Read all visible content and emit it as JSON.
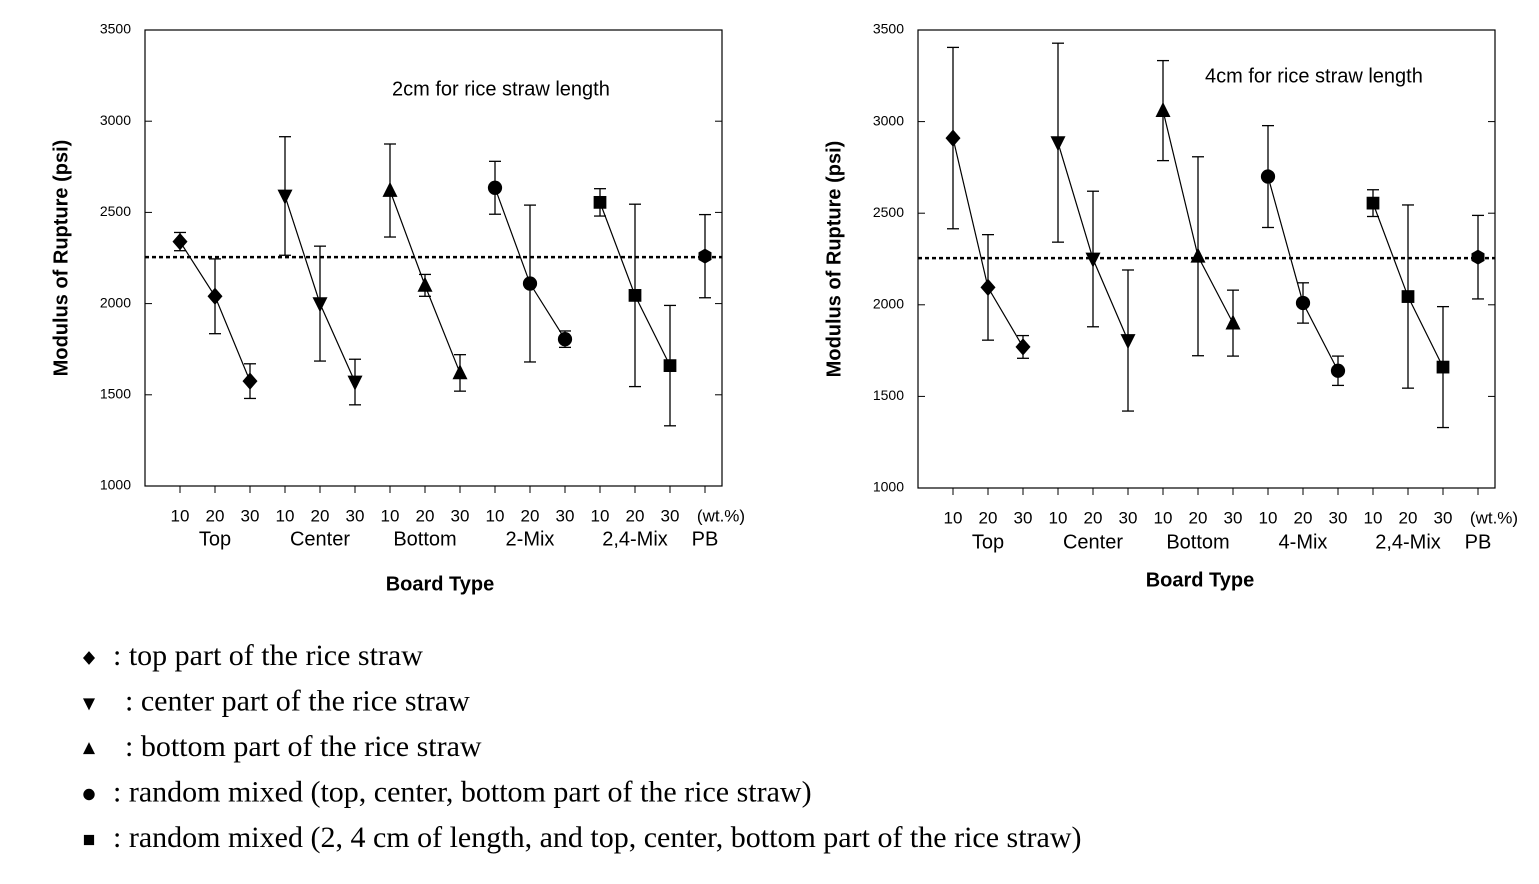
{
  "chart_data": [
    {
      "type": "scatter",
      "annotation": "2cm for rice straw length",
      "xlabel": "Board Type",
      "ylabel": "Modulus of Rupture (psi)",
      "ylim": [
        1000,
        3500
      ],
      "yticks": [
        1000,
        1500,
        2000,
        2500,
        3000,
        3500
      ],
      "color": "#000000",
      "reference_line": 2255,
      "categories": [
        "10",
        "20",
        "30",
        "10",
        "20",
        "30",
        "10",
        "20",
        "30",
        "10",
        "20",
        "30",
        "10",
        "20",
        "30",
        "(wt.%)"
      ],
      "groups": [
        "Top",
        "Center",
        "Bottom",
        "2-Mix",
        "2,4-Mix",
        "PB"
      ],
      "series": [
        {
          "marker": "diamond",
          "values": [
            2340,
            2040,
            1575,
            null,
            null,
            null,
            null,
            null,
            null,
            null,
            null,
            null,
            null,
            null,
            null,
            null
          ],
          "errors": [
            50,
            205,
            95,
            null,
            null,
            null,
            null,
            null,
            null,
            null,
            null,
            null,
            null,
            null,
            null,
            null
          ]
        },
        {
          "marker": "triangle-down",
          "values": [
            null,
            null,
            null,
            2590,
            2000,
            1570,
            null,
            null,
            null,
            null,
            null,
            null,
            null,
            null,
            null,
            null
          ],
          "errors": [
            null,
            null,
            null,
            325,
            315,
            125,
            null,
            null,
            null,
            null,
            null,
            null,
            null,
            null,
            null,
            null
          ]
        },
        {
          "marker": "triangle-up",
          "values": [
            null,
            null,
            null,
            null,
            null,
            null,
            2620,
            2100,
            1620,
            null,
            null,
            null,
            null,
            null,
            null,
            null
          ],
          "errors": [
            null,
            null,
            null,
            null,
            null,
            null,
            255,
            60,
            100,
            null,
            null,
            null,
            null,
            null,
            null,
            null
          ]
        },
        {
          "marker": "circle",
          "values": [
            null,
            null,
            null,
            null,
            null,
            null,
            null,
            null,
            null,
            2635,
            2110,
            1805,
            null,
            null,
            null,
            null
          ],
          "errors": [
            null,
            null,
            null,
            null,
            null,
            null,
            null,
            null,
            null,
            145,
            430,
            45,
            null,
            null,
            null,
            null
          ]
        },
        {
          "marker": "square",
          "values": [
            null,
            null,
            null,
            null,
            null,
            null,
            null,
            null,
            null,
            null,
            null,
            null,
            2555,
            2045,
            1660,
            null
          ],
          "errors": [
            null,
            null,
            null,
            null,
            null,
            null,
            null,
            null,
            null,
            null,
            null,
            null,
            75,
            500,
            330,
            null
          ]
        },
        {
          "marker": "hexagon",
          "values": [
            null,
            null,
            null,
            null,
            null,
            null,
            null,
            null,
            null,
            null,
            null,
            null,
            null,
            null,
            null,
            2260
          ],
          "errors": [
            null,
            null,
            null,
            null,
            null,
            null,
            null,
            null,
            null,
            null,
            null,
            null,
            null,
            null,
            null,
            228
          ]
        }
      ]
    },
    {
      "type": "scatter",
      "annotation": "4cm for rice straw length",
      "xlabel": "Board Type",
      "ylabel": "Modulus of Rupture (psi)",
      "ylim": [
        1000,
        3500
      ],
      "yticks": [
        1000,
        1500,
        2000,
        2500,
        3000,
        3500
      ],
      "color": "#000000",
      "reference_line": 2255,
      "categories": [
        "10",
        "20",
        "30",
        "10",
        "20",
        "30",
        "10",
        "20",
        "30",
        "10",
        "20",
        "30",
        "10",
        "20",
        "30",
        "(wt.%)"
      ],
      "groups": [
        "Top",
        "Center",
        "Bottom",
        "4-Mix",
        "2,4-Mix",
        "PB"
      ],
      "series": [
        {
          "marker": "diamond",
          "values": [
            2910,
            2095,
            1770,
            null,
            null,
            null,
            null,
            null,
            null,
            null,
            null,
            null,
            null,
            null,
            null,
            null
          ],
          "errors": [
            495,
            288,
            62,
            null,
            null,
            null,
            null,
            null,
            null,
            null,
            null,
            null,
            null,
            null,
            null,
            null
          ]
        },
        {
          "marker": "triangle-down",
          "values": [
            null,
            null,
            null,
            2885,
            2250,
            1805,
            null,
            null,
            null,
            null,
            null,
            null,
            null,
            null,
            null,
            null
          ],
          "errors": [
            null,
            null,
            null,
            543,
            370,
            385,
            null,
            null,
            null,
            null,
            null,
            null,
            null,
            null,
            null,
            null
          ]
        },
        {
          "marker": "triangle-up",
          "values": [
            null,
            null,
            null,
            null,
            null,
            null,
            3060,
            2265,
            1900,
            null,
            null,
            null,
            null,
            null,
            null,
            null
          ],
          "errors": [
            null,
            null,
            null,
            null,
            null,
            null,
            273,
            543,
            180,
            null,
            null,
            null,
            null,
            null,
            null,
            null
          ]
        },
        {
          "marker": "circle",
          "values": [
            null,
            null,
            null,
            null,
            null,
            null,
            null,
            null,
            null,
            2700,
            2010,
            1640,
            null,
            null,
            null,
            null
          ],
          "errors": [
            null,
            null,
            null,
            null,
            null,
            null,
            null,
            null,
            null,
            278,
            110,
            80,
            null,
            null,
            null,
            null
          ]
        },
        {
          "marker": "square",
          "values": [
            null,
            null,
            null,
            null,
            null,
            null,
            null,
            null,
            null,
            null,
            null,
            null,
            2555,
            2045,
            1660,
            null
          ],
          "errors": [
            null,
            null,
            null,
            null,
            null,
            null,
            null,
            null,
            null,
            null,
            null,
            null,
            73,
            500,
            330,
            null
          ]
        },
        {
          "marker": "hexagon",
          "values": [
            null,
            null,
            null,
            null,
            null,
            null,
            null,
            null,
            null,
            null,
            null,
            null,
            null,
            null,
            null,
            2260
          ],
          "errors": [
            null,
            null,
            null,
            null,
            null,
            null,
            null,
            null,
            null,
            null,
            null,
            null,
            null,
            null,
            null,
            228
          ]
        }
      ]
    }
  ],
  "legend": [
    {
      "marker": "diamond",
      "label": ": top part of the rice straw"
    },
    {
      "marker": "triangle-down",
      "label": ": center part of the rice straw"
    },
    {
      "marker": "triangle-up",
      "label": ": bottom part of the rice straw"
    },
    {
      "marker": "circle",
      "label": ": random mixed (top, center, bottom part of the rice straw)"
    },
    {
      "marker": "square",
      "label": ": random mixed (2, 4 cm of length, and top, center, bottom part of the rice straw)"
    }
  ]
}
